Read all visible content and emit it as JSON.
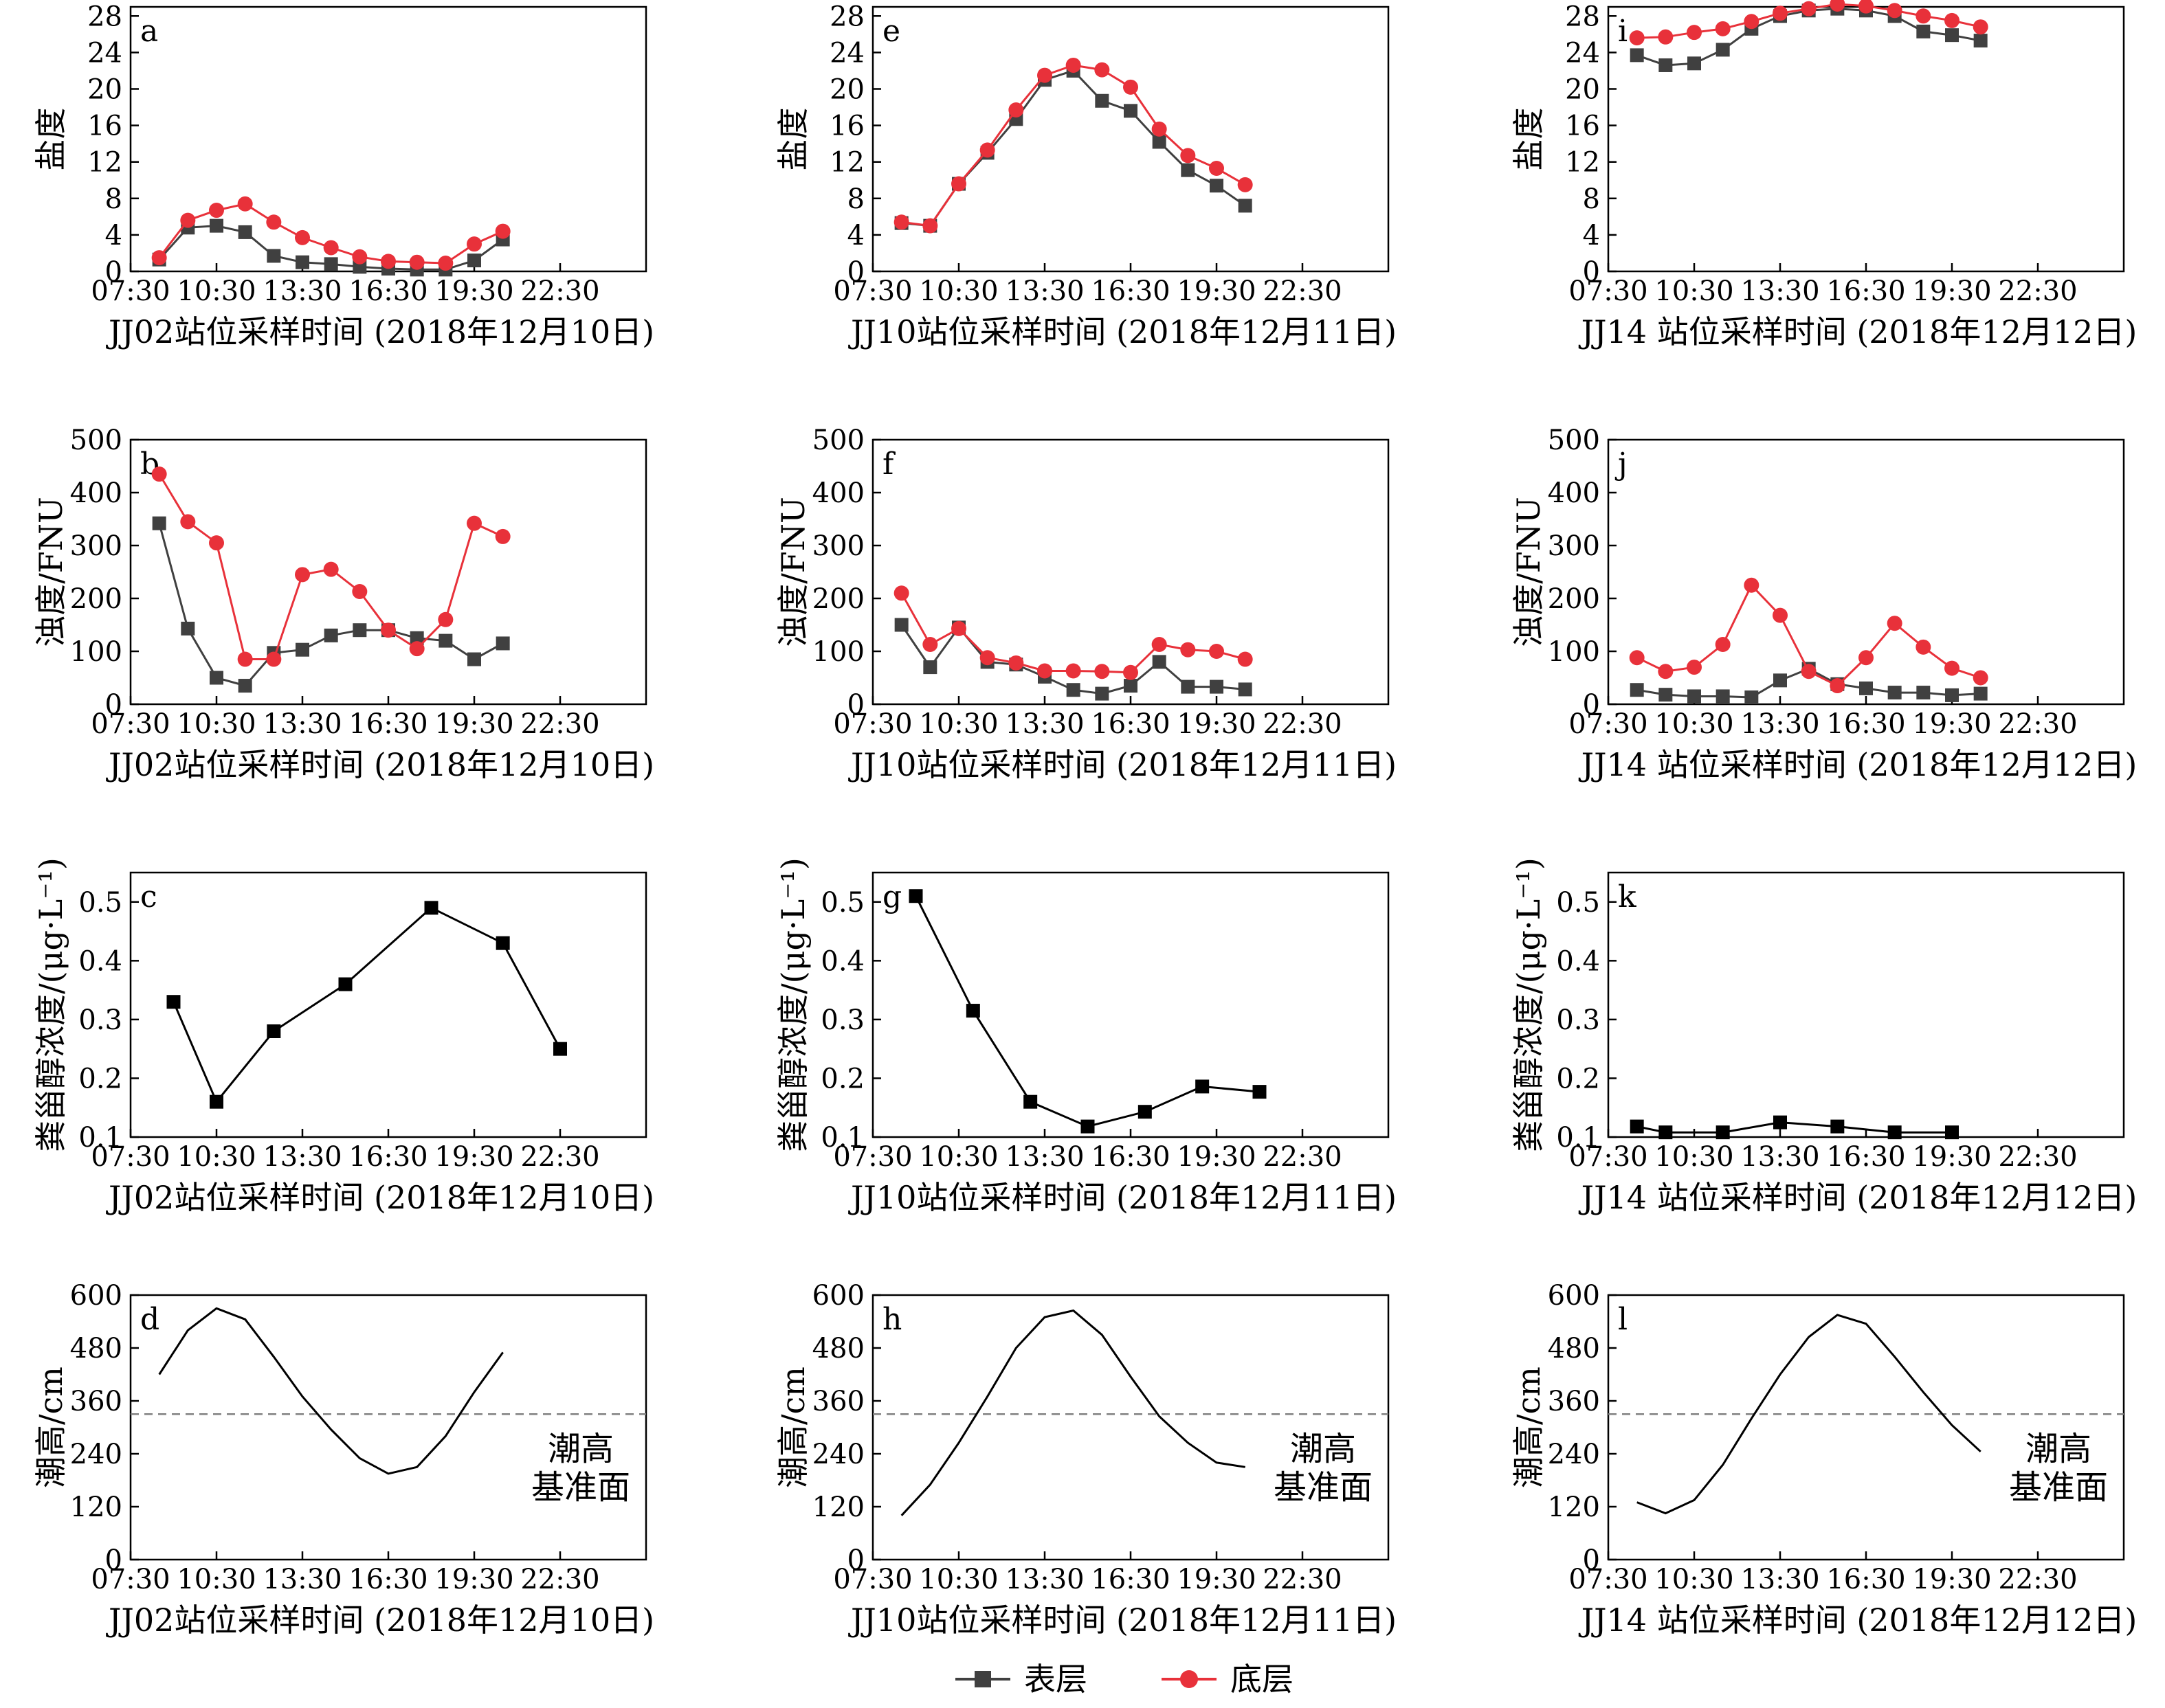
{
  "colors": {
    "surface": "#404040",
    "bottom": "#e8313a",
    "single": "#000000",
    "ref_line": "#808080"
  },
  "x_ticks": [
    "07:30",
    "10:30",
    "13:30",
    "16:30",
    "19:30",
    "22:30"
  ],
  "legend": {
    "surface": "表层",
    "bottom": "底层"
  },
  "chart_data": [
    {
      "id": "a",
      "panel_letter": "a",
      "type": "line",
      "ylabel": "盐度",
      "xlabel": "JJ02站位采样时间 (2018年12月10日)",
      "xlim": [
        7.5,
        25.5
      ],
      "ylim": [
        0,
        29
      ],
      "yticks": [
        0,
        4,
        8,
        12,
        16,
        20,
        24,
        28
      ],
      "series": [
        {
          "name": "表层",
          "marker": "square",
          "color": "#404040",
          "x": [
            8.5,
            9.5,
            10.5,
            11.5,
            12.5,
            13.5,
            14.5,
            15.5,
            16.5,
            17.5,
            18.5,
            19.5,
            20.5
          ],
          "y": [
            1.3,
            4.8,
            5.0,
            4.3,
            1.7,
            1.0,
            0.8,
            0.5,
            0.3,
            0.2,
            0.2,
            1.2,
            3.5
          ]
        },
        {
          "name": "底层",
          "marker": "circle",
          "color": "#e8313a",
          "x": [
            8.5,
            9.5,
            10.5,
            11.5,
            12.5,
            13.5,
            14.5,
            15.5,
            16.5,
            17.5,
            18.5,
            19.5,
            20.5
          ],
          "y": [
            1.5,
            5.6,
            6.7,
            7.4,
            5.4,
            3.7,
            2.6,
            1.6,
            1.1,
            1.0,
            0.9,
            3.0,
            4.4
          ]
        }
      ]
    },
    {
      "id": "b",
      "panel_letter": "b",
      "type": "line",
      "ylabel": "浊度/FNU",
      "xlabel": "JJ02站位采样时间 (2018年12月10日)",
      "xlim": [
        7.5,
        25.5
      ],
      "ylim": [
        0,
        500
      ],
      "yticks": [
        0,
        100,
        200,
        300,
        400,
        500
      ],
      "series": [
        {
          "name": "表层",
          "marker": "square",
          "color": "#404040",
          "x": [
            8.5,
            9.5,
            10.5,
            11.5,
            12.5,
            13.5,
            14.5,
            15.5,
            16.5,
            17.5,
            18.5,
            19.5,
            20.5
          ],
          "y": [
            342,
            143,
            50,
            35,
            97,
            103,
            130,
            140,
            140,
            125,
            120,
            85,
            115
          ]
        },
        {
          "name": "底层",
          "marker": "circle",
          "color": "#e8313a",
          "x": [
            8.5,
            9.5,
            10.5,
            11.5,
            12.5,
            13.5,
            14.5,
            15.5,
            16.5,
            17.5,
            18.5,
            19.5,
            20.5
          ],
          "y": [
            435,
            345,
            305,
            85,
            85,
            245,
            255,
            213,
            140,
            105,
            160,
            342,
            317
          ]
        }
      ]
    },
    {
      "id": "c",
      "panel_letter": "c",
      "type": "line",
      "ylabel": "粪甾醇浓度/(μg·L⁻¹)",
      "xlabel": "JJ02站位采样时间 (2018年12月10日)",
      "xlim": [
        7.5,
        25.5
      ],
      "ylim": [
        0.1,
        0.55
      ],
      "yticks": [
        0.1,
        0.2,
        0.3,
        0.4,
        0.5
      ],
      "series": [
        {
          "name": "",
          "marker": "square",
          "color": "#000000",
          "x": [
            9.0,
            10.5,
            12.5,
            15.0,
            18.0,
            20.5,
            22.5
          ],
          "y": [
            0.33,
            0.16,
            0.28,
            0.36,
            0.49,
            0.43,
            0.25
          ]
        }
      ]
    },
    {
      "id": "d",
      "panel_letter": "d",
      "type": "line",
      "ylabel": "潮高/cm",
      "xlabel": "JJ02站位采样时间 (2018年12月10日)",
      "xlim": [
        7.5,
        25.5
      ],
      "ylim": [
        0,
        600
      ],
      "yticks": [
        0,
        120,
        240,
        360,
        480,
        600
      ],
      "ref_y": 330,
      "annotation": [
        "潮高",
        "基准面"
      ],
      "series": [
        {
          "name": "",
          "marker": "none",
          "color": "#000000",
          "x": [
            8.5,
            9.5,
            10.5,
            11.5,
            12.5,
            13.5,
            14.5,
            15.5,
            16.5,
            17.5,
            18.5,
            19.5,
            20.5
          ],
          "y": [
            420,
            520,
            570,
            545,
            460,
            370,
            295,
            230,
            195,
            210,
            280,
            380,
            470
          ]
        }
      ]
    },
    {
      "id": "e",
      "panel_letter": "e",
      "type": "line",
      "ylabel": "盐度",
      "xlabel": "JJ10站位采样时间 (2018年12月11日)",
      "xlim": [
        7.5,
        25.5
      ],
      "ylim": [
        0,
        29
      ],
      "yticks": [
        0,
        4,
        8,
        12,
        16,
        20,
        24,
        28
      ],
      "series": [
        {
          "name": "表层",
          "marker": "square",
          "color": "#404040",
          "x": [
            8.5,
            9.5,
            10.5,
            11.5,
            12.5,
            13.5,
            14.5,
            15.5,
            16.5,
            17.5,
            18.5,
            19.5,
            20.5
          ],
          "y": [
            5.3,
            5.0,
            9.6,
            13.0,
            16.7,
            21.0,
            22.0,
            18.7,
            17.6,
            14.2,
            11.1,
            9.4,
            7.2
          ]
        },
        {
          "name": "底层",
          "marker": "circle",
          "color": "#e8313a",
          "x": [
            8.5,
            9.5,
            10.5,
            11.5,
            12.5,
            13.5,
            14.5,
            15.5,
            16.5,
            17.5,
            18.5,
            19.5,
            20.5
          ],
          "y": [
            5.4,
            5.0,
            9.6,
            13.3,
            17.7,
            21.5,
            22.6,
            22.1,
            20.2,
            15.6,
            12.7,
            11.3,
            9.5
          ]
        }
      ]
    },
    {
      "id": "f",
      "panel_letter": "f",
      "type": "line",
      "ylabel": "浊度/FNU",
      "xlabel": "JJ10站位采样时间 (2018年12月11日)",
      "xlim": [
        7.5,
        25.5
      ],
      "ylim": [
        0,
        500
      ],
      "yticks": [
        0,
        100,
        200,
        300,
        400,
        500
      ],
      "series": [
        {
          "name": "表层",
          "marker": "square",
          "color": "#404040",
          "x": [
            8.5,
            9.5,
            10.5,
            11.5,
            12.5,
            13.5,
            14.5,
            15.5,
            16.5,
            17.5,
            18.5,
            19.5,
            20.5
          ],
          "y": [
            150,
            70,
            145,
            80,
            75,
            52,
            27,
            20,
            35,
            80,
            33,
            33,
            28
          ]
        },
        {
          "name": "底层",
          "marker": "circle",
          "color": "#e8313a",
          "x": [
            8.5,
            9.5,
            10.5,
            11.5,
            12.5,
            13.5,
            14.5,
            15.5,
            16.5,
            17.5,
            18.5,
            19.5,
            20.5
          ],
          "y": [
            210,
            113,
            143,
            88,
            78,
            63,
            63,
            62,
            60,
            113,
            103,
            100,
            85
          ]
        }
      ]
    },
    {
      "id": "g",
      "panel_letter": "g",
      "type": "line",
      "ylabel": "粪甾醇浓度/(μg·L⁻¹)",
      "xlabel": "JJ10站位采样时间 (2018年12月11日)",
      "xlim": [
        7.5,
        25.5
      ],
      "ylim": [
        0.1,
        0.55
      ],
      "yticks": [
        0.1,
        0.2,
        0.3,
        0.4,
        0.5
      ],
      "series": [
        {
          "name": "",
          "marker": "square",
          "color": "#000000",
          "x": [
            9.0,
            11.0,
            13.0,
            15.0,
            17.0,
            19.0,
            21.0
          ],
          "y": [
            0.51,
            0.315,
            0.16,
            0.118,
            0.143,
            0.186,
            0.177
          ]
        }
      ]
    },
    {
      "id": "h",
      "panel_letter": "h",
      "type": "line",
      "ylabel": "潮高/cm",
      "xlabel": "JJ10站位采样时间 (2018年12月11日)",
      "xlim": [
        7.5,
        25.5
      ],
      "ylim": [
        0,
        600
      ],
      "yticks": [
        0,
        120,
        240,
        360,
        480,
        600
      ],
      "ref_y": 330,
      "annotation": [
        "潮高",
        "基准面"
      ],
      "series": [
        {
          "name": "",
          "marker": "none",
          "color": "#000000",
          "x": [
            8.5,
            9.5,
            10.5,
            11.5,
            12.5,
            13.5,
            14.5,
            15.5,
            16.5,
            17.5,
            18.5,
            19.5,
            20.5
          ],
          "y": [
            100,
            170,
            265,
            370,
            480,
            550,
            565,
            510,
            415,
            325,
            265,
            220,
            210
          ]
        }
      ]
    },
    {
      "id": "i",
      "panel_letter": "i",
      "type": "line",
      "ylabel": "盐度",
      "xlabel": "JJ14 站位采样时间 (2018年12月12日)",
      "xlim": [
        7.5,
        25.5
      ],
      "ylim": [
        0,
        29
      ],
      "yticks": [
        0,
        4,
        8,
        12,
        16,
        20,
        24,
        28
      ],
      "series": [
        {
          "name": "表层",
          "marker": "square",
          "color": "#404040",
          "x": [
            8.5,
            9.5,
            10.5,
            11.5,
            12.5,
            13.5,
            14.5,
            15.5,
            16.5,
            17.5,
            18.5,
            19.5,
            20.5
          ],
          "y": [
            23.7,
            22.6,
            22.8,
            24.3,
            26.6,
            28.0,
            28.6,
            28.8,
            28.6,
            28.0,
            26.3,
            25.9,
            25.3
          ]
        },
        {
          "name": "底层",
          "marker": "circle",
          "color": "#e8313a",
          "x": [
            8.5,
            9.5,
            10.5,
            11.5,
            12.5,
            13.5,
            14.5,
            15.5,
            16.5,
            17.5,
            18.5,
            19.5,
            20.5
          ],
          "y": [
            25.6,
            25.7,
            26.2,
            26.6,
            27.4,
            28.3,
            28.8,
            29.3,
            29.1,
            28.6,
            28.0,
            27.5,
            26.8
          ]
        }
      ]
    },
    {
      "id": "j",
      "panel_letter": "j",
      "type": "line",
      "ylabel": "浊度/FNU",
      "xlabel": "JJ14 站位采样时间 (2018年12月12日)",
      "xlim": [
        7.5,
        25.5
      ],
      "ylim": [
        0,
        500
      ],
      "yticks": [
        0,
        100,
        200,
        300,
        400,
        500
      ],
      "series": [
        {
          "name": "表层",
          "marker": "square",
          "color": "#404040",
          "x": [
            8.5,
            9.5,
            10.5,
            11.5,
            12.5,
            13.5,
            14.5,
            15.5,
            16.5,
            17.5,
            18.5,
            19.5,
            20.5
          ],
          "y": [
            27,
            18,
            15,
            15,
            13,
            45,
            67,
            38,
            30,
            22,
            22,
            17,
            20
          ]
        },
        {
          "name": "底层",
          "marker": "circle",
          "color": "#e8313a",
          "x": [
            8.5,
            9.5,
            10.5,
            11.5,
            12.5,
            13.5,
            14.5,
            15.5,
            16.5,
            17.5,
            18.5,
            19.5,
            20.5
          ],
          "y": [
            88,
            62,
            70,
            113,
            225,
            168,
            62,
            35,
            88,
            153,
            108,
            68,
            50
          ]
        }
      ]
    },
    {
      "id": "k",
      "panel_letter": "k",
      "type": "line",
      "ylabel": "粪甾醇浓度/(μg·L⁻¹)",
      "xlabel": "JJ14 站位采样时间 (2018年12月12日)",
      "xlim": [
        7.5,
        25.5
      ],
      "ylim": [
        0.1,
        0.55
      ],
      "yticks": [
        0.1,
        0.2,
        0.3,
        0.4,
        0.5
      ],
      "series": [
        {
          "name": "",
          "marker": "square",
          "color": "#000000",
          "x": [
            8.5,
            9.5,
            11.5,
            13.5,
            15.5,
            17.5,
            19.5
          ],
          "y": [
            0.118,
            0.108,
            0.108,
            0.125,
            0.118,
            0.108,
            0.108
          ]
        }
      ]
    },
    {
      "id": "l",
      "panel_letter": "l",
      "type": "line",
      "ylabel": "潮高/cm",
      "xlabel": "JJ14 站位采样时间 (2018年12月12日)",
      "xlim": [
        7.5,
        25.5
      ],
      "ylim": [
        0,
        600
      ],
      "yticks": [
        0,
        120,
        240,
        360,
        480,
        600
      ],
      "ref_y": 330,
      "annotation": [
        "潮高",
        "基准面"
      ],
      "series": [
        {
          "name": "",
          "marker": "none",
          "color": "#000000",
          "x": [
            8.5,
            9.5,
            10.5,
            11.5,
            12.5,
            13.5,
            14.5,
            15.5,
            16.5,
            17.5,
            18.5,
            19.5,
            20.5
          ],
          "y": [
            130,
            105,
            135,
            215,
            320,
            420,
            505,
            555,
            535,
            460,
            380,
            305,
            245
          ]
        }
      ]
    }
  ]
}
